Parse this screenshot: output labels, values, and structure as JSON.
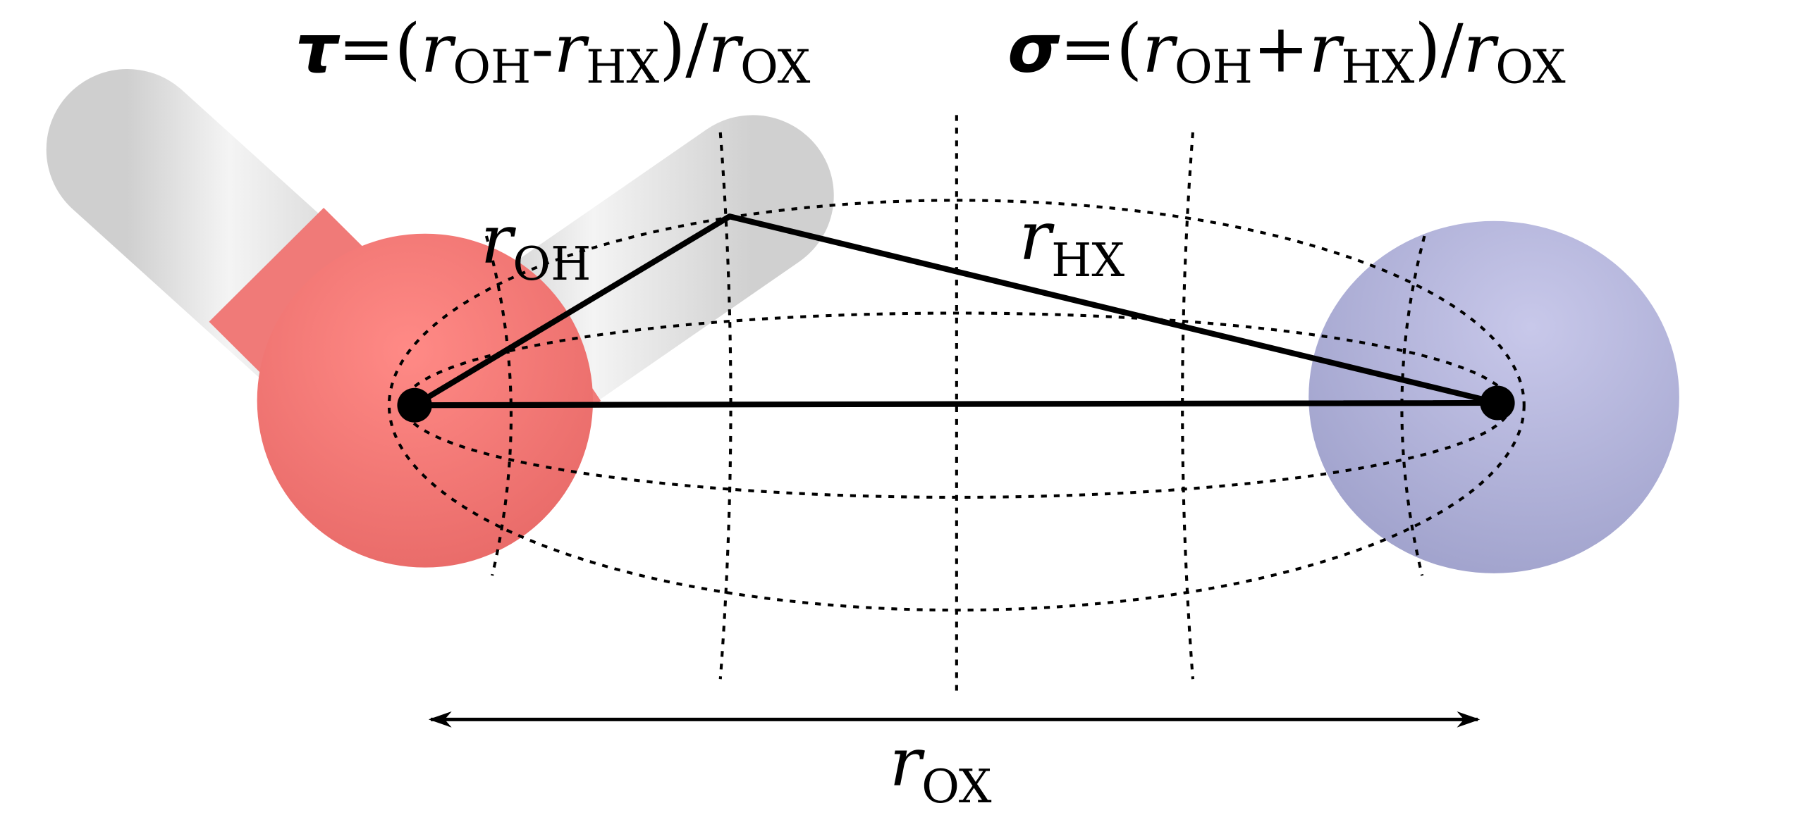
{
  "formulas": [
    {
      "parts": [
        "τ",
        "=(",
        "r",
        "OH",
        "-",
        "r",
        "HX",
        ")/",
        "r",
        "OX"
      ]
    },
    {
      "parts": [
        "σ",
        "=(",
        "r",
        "OH",
        "+",
        "r",
        "HX",
        ")/",
        "r",
        "OX"
      ]
    }
  ],
  "labels": {
    "r_oh": {
      "symbol": "r",
      "subscript": "OH"
    },
    "r_hx": {
      "symbol": "r",
      "subscript": "HX"
    },
    "r_ox": {
      "symbol": "r",
      "subscript": "OX"
    }
  }
}
